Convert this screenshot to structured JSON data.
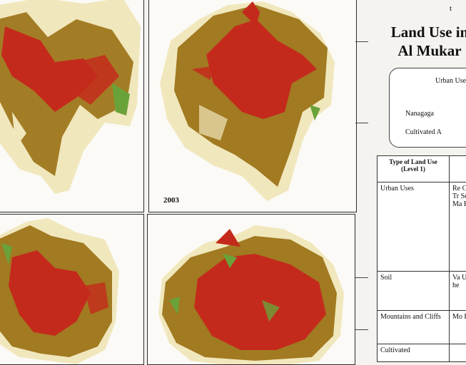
{
  "maps": [
    {
      "year": ""
    },
    {
      "year": "2003"
    },
    {
      "year": ""
    },
    {
      "year": ""
    }
  ],
  "title": {
    "line1": "Land Use in",
    "line2": "Al Mukar"
  },
  "corner_mark": "t",
  "legend_box": {
    "line1": "Urban Use",
    "line2": "Nanagaga",
    "line3": "Cultivated A"
  },
  "table": {
    "header_col1": "Type of Land Use (Level 1)",
    "header_col2": "",
    "rows": [
      {
        "type": "Urban Uses",
        "desc": "Re Co Tr Se Ma Re"
      },
      {
        "type": "Soil",
        "desc": "Va Ur he"
      },
      {
        "type": "Mountains and Cliffs",
        "desc": "Mo Re"
      },
      {
        "type": "Cultivated",
        "desc": ""
      }
    ]
  },
  "colors": {
    "urban": "#c42a1c",
    "terrain": "#9c7418",
    "soil": "#f1e7bd",
    "vegetation": "#6aa23a",
    "frame": "#2c2c2c"
  }
}
